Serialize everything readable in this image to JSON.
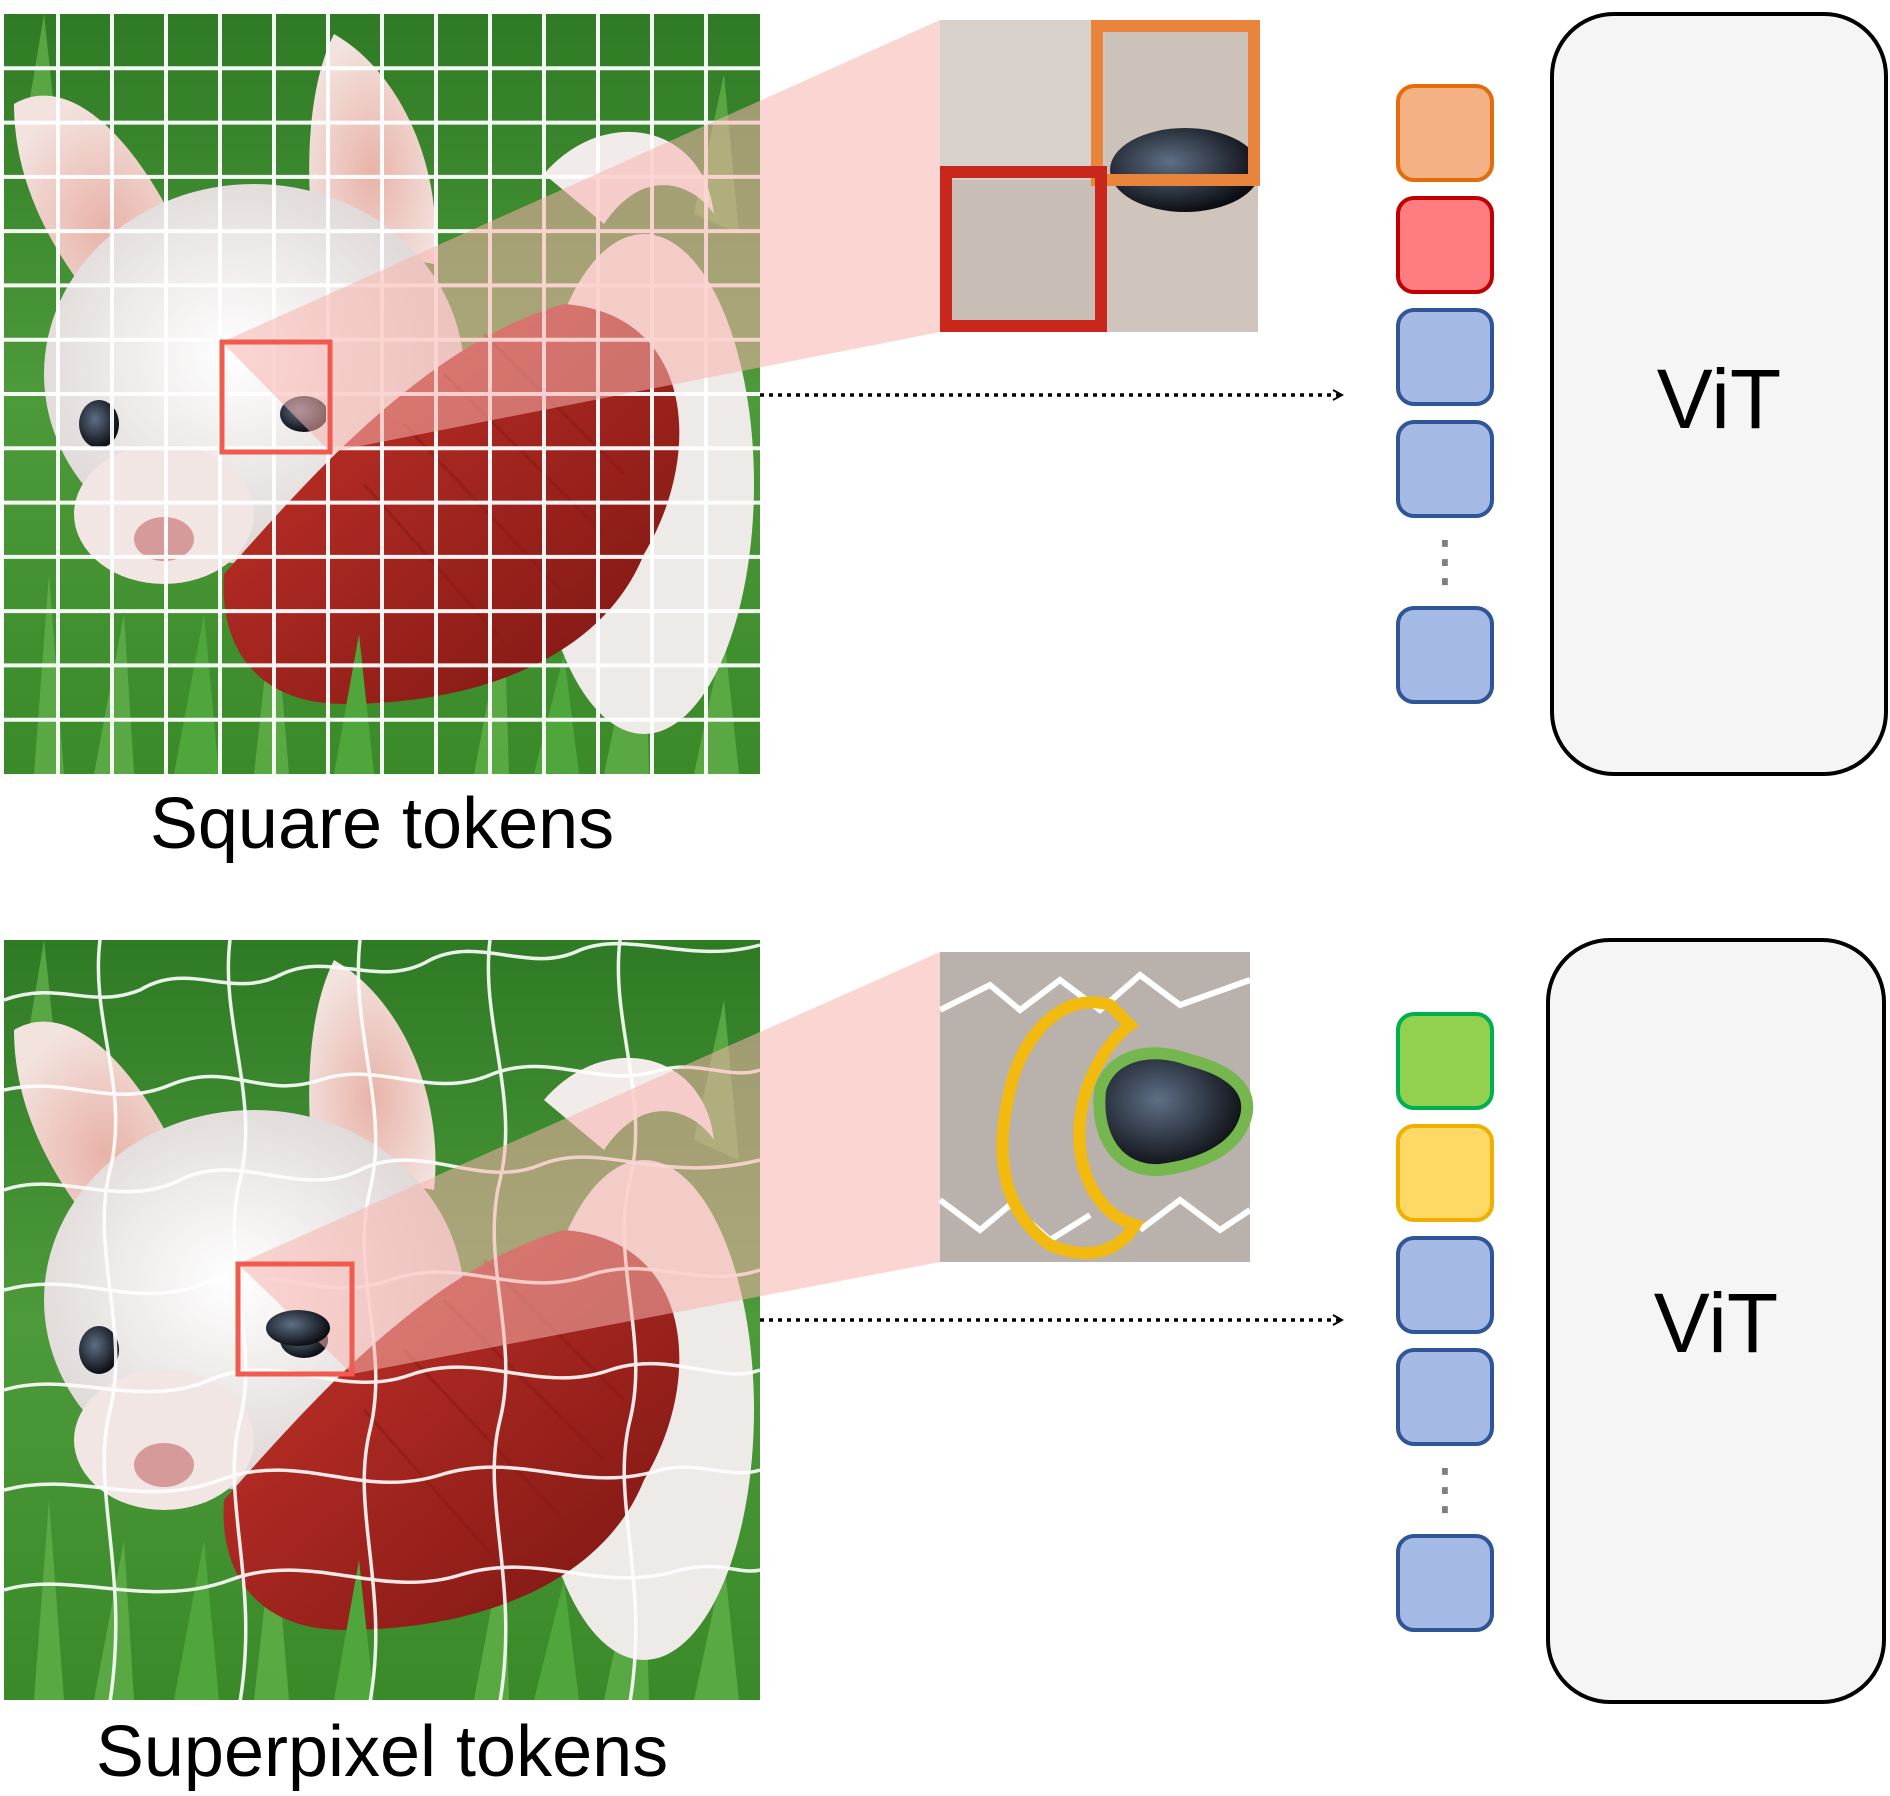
{
  "panels": [
    {
      "id": "square",
      "caption": "Square tokens",
      "model_label": "ViT",
      "tokenization": "square-grid",
      "tokens": [
        {
          "color": "#f4b183",
          "border": "#e46c0a",
          "role": "highlighted-patch-orange"
        },
        {
          "color": "#ff7c80",
          "border": "#c00000",
          "role": "highlighted-patch-red"
        },
        {
          "color": "#a4b9e3",
          "border": "#2f5597",
          "role": "token"
        },
        {
          "color": "#a4b9e3",
          "border": "#2f5597",
          "role": "token"
        },
        {
          "color": "#a4b9e3",
          "border": "#2f5597",
          "role": "token"
        }
      ],
      "ellipsis": "⋮"
    },
    {
      "id": "superpixel",
      "caption": "Superpixel tokens",
      "model_label": "ViT",
      "tokenization": "superpixel",
      "tokens": [
        {
          "color": "#92d050",
          "border": "#00b050",
          "role": "highlighted-superpixel-green"
        },
        {
          "color": "#ffd966",
          "border": "#f0b000",
          "role": "highlighted-superpixel-yellow"
        },
        {
          "color": "#a4b9e3",
          "border": "#2f5597",
          "role": "token"
        },
        {
          "color": "#a4b9e3",
          "border": "#2f5597",
          "role": "token"
        },
        {
          "color": "#a4b9e3",
          "border": "#2f5597",
          "role": "token"
        }
      ],
      "ellipsis": "⋮"
    }
  ],
  "colors": {
    "grass": "#3f8a2e",
    "dog_fur": "#e9e4e2",
    "sweater": "#b3231c",
    "grid_line": "#ffffff",
    "zoom_wedge": "#f7b3ad",
    "selection_box": "#f05a4f",
    "vit_fill": "#f5f5f5",
    "vit_border": "#000000",
    "arrow": "#000000"
  }
}
